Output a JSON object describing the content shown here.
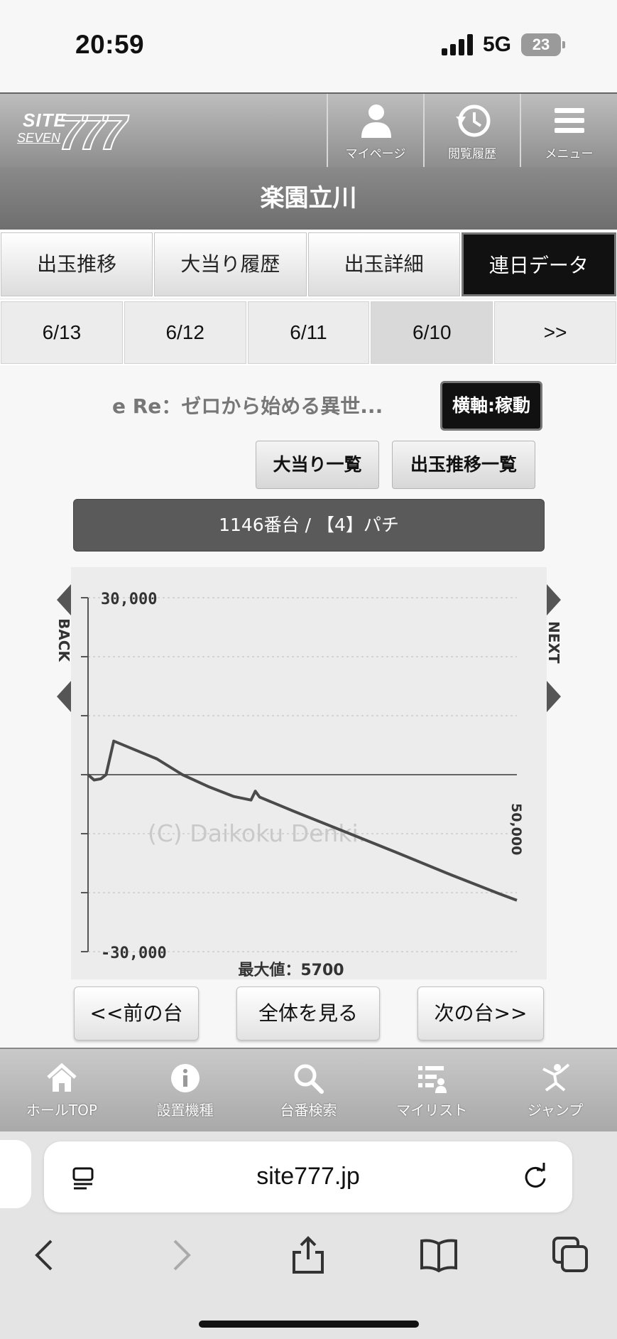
{
  "status_bar": {
    "time": "20:59",
    "network": "5G",
    "battery": "23"
  },
  "header": {
    "logo_line1": "SITE",
    "logo_line2": "SEVEN",
    "logo_number": "777",
    "mypage_label": "マイページ",
    "history_label": "閲覧履歴",
    "menu_label": "メニュー"
  },
  "hall_name": "楽園立川",
  "tabs": [
    {
      "label": "出玉推移"
    },
    {
      "label": "大当り履歴"
    },
    {
      "label": "出玉詳細"
    },
    {
      "label": "連日データ",
      "active": true
    }
  ],
  "date_tabs": [
    {
      "label": "6/13"
    },
    {
      "label": "6/12"
    },
    {
      "label": "6/11"
    },
    {
      "label": "6/10",
      "selected": true
    },
    {
      "label": ">>"
    }
  ],
  "machine_name": "e Re：ゼロから始める異世...",
  "axis_toggle_label": "横軸:稼動",
  "buttons": {
    "jackpot_list": "大当り一覧",
    "payout_list": "出玉推移一覧",
    "prev_unit": "<<前の台",
    "view_all": "全体を見る",
    "next_unit": "次の台>>"
  },
  "unit_title": "1146番台 / 【4】パチ",
  "nav": {
    "back": "BACK",
    "next": "NEXT"
  },
  "chart_data": {
    "type": "line",
    "watermark": "(C) Daikoku Denki.",
    "ylim": [
      -30000,
      30000
    ],
    "ytick_labels": [
      "30,000",
      "-30,000"
    ],
    "x_end_label": "50,000",
    "max_label": "最大値：5700",
    "x": [
      0,
      700,
      1500,
      2100,
      3000,
      5000,
      8000,
      11000,
      14000,
      17000,
      19000,
      19500,
      20000,
      24000,
      30000,
      36000,
      42000,
      48000,
      50000
    ],
    "y": [
      0,
      -900,
      -700,
      0,
      5700,
      4500,
      2700,
      0,
      -2000,
      -3700,
      -4300,
      -2800,
      -3800,
      -6200,
      -9700,
      -13200,
      -16800,
      -20200,
      -21300
    ]
  },
  "bottom_nav": [
    {
      "label": "ホールTOP",
      "icon": "home-icon"
    },
    {
      "label": "設置機種",
      "icon": "info-icon"
    },
    {
      "label": "台番検索",
      "icon": "search-icon"
    },
    {
      "label": "マイリスト",
      "icon": "list-icon"
    },
    {
      "label": "ジャンプ",
      "icon": "jump-icon"
    }
  ],
  "browser": {
    "url": "site777.jp"
  }
}
